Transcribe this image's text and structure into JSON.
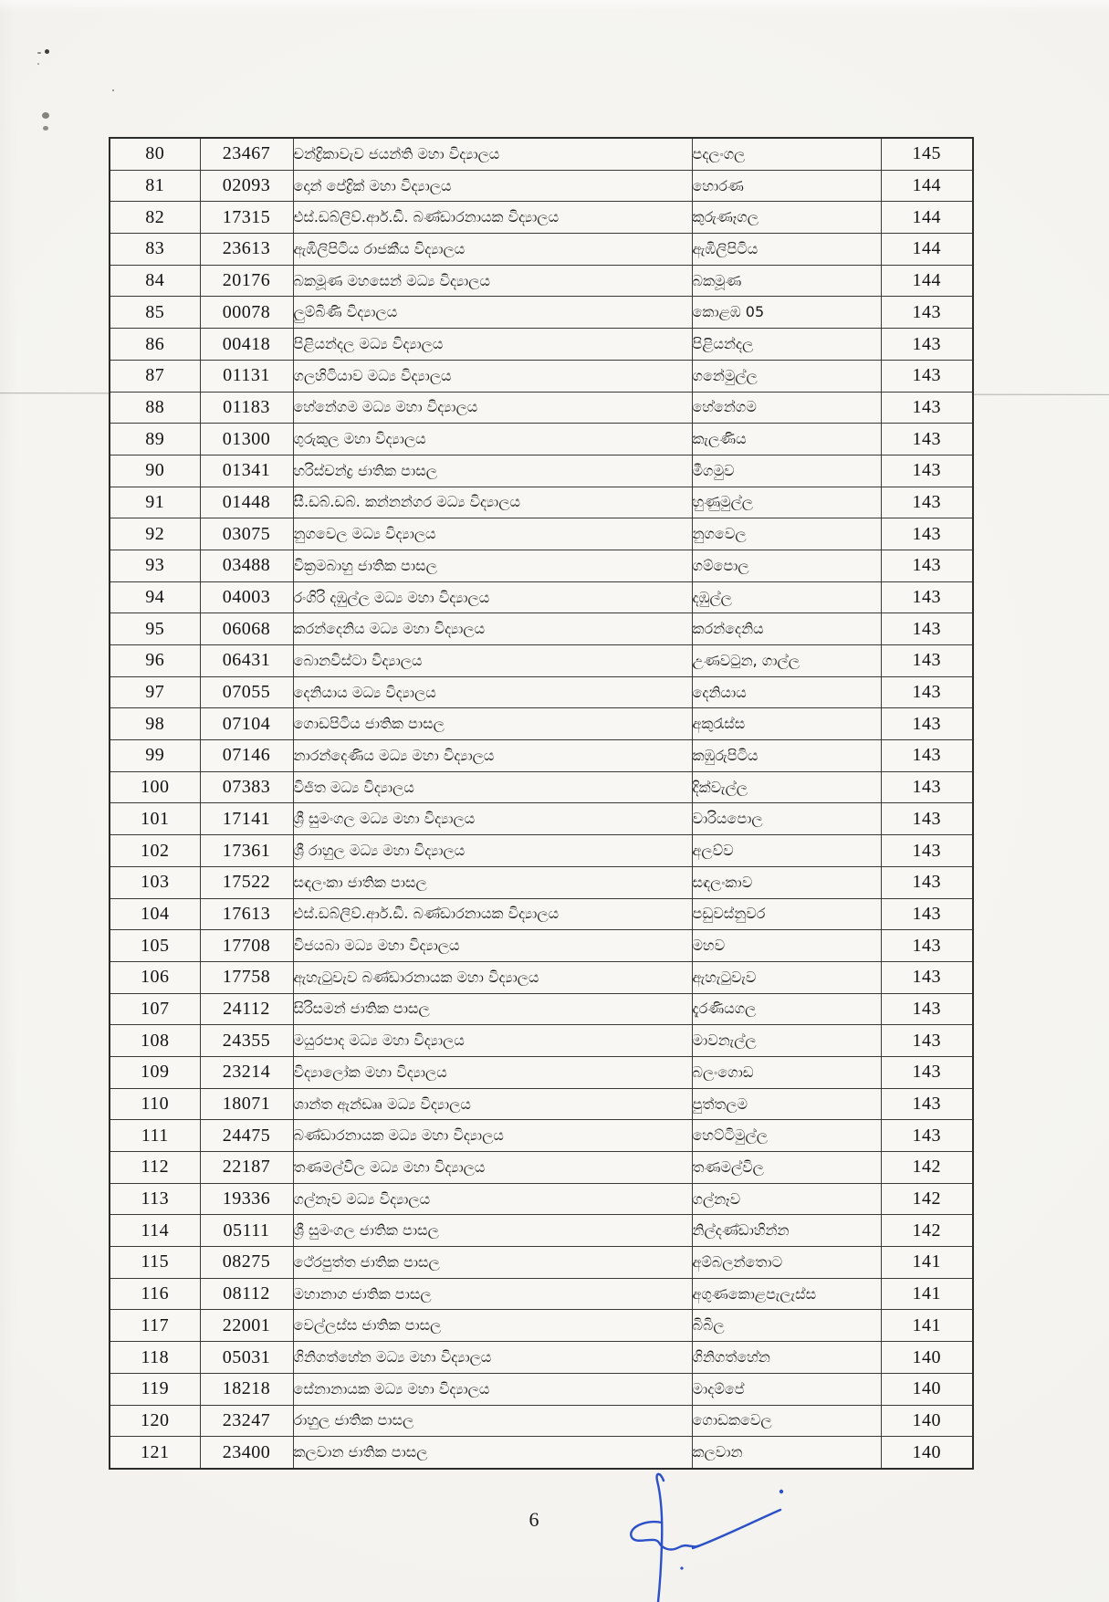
{
  "page": {
    "number_label": "6"
  },
  "scan": {
    "paper_color": "#f6f5f1",
    "border_color": "#3a3a38",
    "ink_color": "#2b50c8",
    "artifacts": [
      "pencil-specks-top-left",
      "horizontal-scan-line",
      "blue-pen-signature"
    ]
  },
  "table": {
    "columns": [
      {
        "key": "no",
        "role": "row-number",
        "align": "center"
      },
      {
        "key": "code",
        "role": "school-code",
        "align": "center"
      },
      {
        "key": "school",
        "role": "school-name",
        "align": "left"
      },
      {
        "key": "town",
        "role": "town-name",
        "align": "left"
      },
      {
        "key": "count",
        "role": "count-value",
        "align": "center"
      }
    ],
    "rows": [
      {
        "no": "80",
        "code": "23467",
        "school": "චන්ද්‍රිකාවැව ජයන්ති මහා විද්‍යාලය",
        "town": "පදලංගල",
        "count": "145"
      },
      {
        "no": "81",
        "code": "02093",
        "school": "දොන් පේද්‍රික් මහා විද්‍යාලය",
        "town": "හොරණ",
        "count": "144"
      },
      {
        "no": "82",
        "code": "17315",
        "school": "එස්.ඩබ්ලිව්.ආර්.ඩී. බණ්ඩාරනායක විද්‍යාලය",
        "town": "කුරුණෑගල",
        "count": "144"
      },
      {
        "no": "83",
        "code": "23613",
        "school": "ඇඹිලිපිටිය රාජකීය විද්‍යාලය",
        "town": "ඇඹිලිපිටිය",
        "count": "144"
      },
      {
        "no": "84",
        "code": "20176",
        "school": "බකමූණ මහසෙන් මධ්‍ය විද්‍යාලය",
        "town": "බකමූණ",
        "count": "144"
      },
      {
        "no": "85",
        "code": "00078",
        "school": "ලුම්බිණි විද්‍යාලය",
        "town": "කොළඹ 05",
        "count": "143"
      },
      {
        "no": "86",
        "code": "00418",
        "school": "පිළියන්දල මධ්‍ය විද්‍යාලය",
        "town": "පිළියන්දල",
        "count": "143"
      },
      {
        "no": "87",
        "code": "01131",
        "school": "ගලහිටියාව මධ්‍ය විද්‍යාලය",
        "town": "ගනේමුල්ල",
        "count": "143"
      },
      {
        "no": "88",
        "code": "01183",
        "school": "හේනේගම මධ්‍ය මහා විද්‍යාලය",
        "town": "හේනේගම",
        "count": "143"
      },
      {
        "no": "89",
        "code": "01300",
        "school": "ගුරුකුල මහා විද්‍යාලය",
        "town": "කැලණිය",
        "count": "143"
      },
      {
        "no": "90",
        "code": "01341",
        "school": "හරිස්චන්ද්‍ර ජාතික පාසල",
        "town": "මීගමුව",
        "count": "143"
      },
      {
        "no": "91",
        "code": "01448",
        "school": "සී.ඩබ්.ඩබ්. කන්නන්ගර මධ්‍ය විද්‍යාලය",
        "town": "හුණුමුල්ල",
        "count": "143"
      },
      {
        "no": "92",
        "code": "03075",
        "school": "නුගවෙල මධ්‍ය විද්‍යාලය",
        "town": "නුගවෙල",
        "count": "143"
      },
      {
        "no": "93",
        "code": "03488",
        "school": "වික්‍රමබාහු ජාතික පාසල",
        "town": "ගම්පොල",
        "count": "143"
      },
      {
        "no": "94",
        "code": "04003",
        "school": "රංගිරි දඹුල්ල මධ්‍ය මහා විද්‍යාලය",
        "town": "දඹුල්ල",
        "count": "143"
      },
      {
        "no": "95",
        "code": "06068",
        "school": "කරන්දෙනිය මධ්‍ය මහා විද්‍යාලය",
        "town": "කරන්දෙනිය",
        "count": "143"
      },
      {
        "no": "96",
        "code": "06431",
        "school": "බොනවිස්ටා විද්‍යාලය",
        "town": "උණවටුන, ගාල්ල",
        "count": "143"
      },
      {
        "no": "97",
        "code": "07055",
        "school": "දෙනියාය මධ්‍ය විද්‍යාලය",
        "town": "දෙනියාය",
        "count": "143"
      },
      {
        "no": "98",
        "code": "07104",
        "school": "ගොඩපිටිය ජාතික පාසල",
        "town": "අකුරැස්ස",
        "count": "143"
      },
      {
        "no": "99",
        "code": "07146",
        "school": "නාරන්දෙණිය මධ්‍ය මහා විද්‍යාලය",
        "town": "කඹුරුපිටිය",
        "count": "143"
      },
      {
        "no": "100",
        "code": "07383",
        "school": "විජිත මධ්‍ය විද්‍යාලය",
        "town": "දික්වැල්ල",
        "count": "143"
      },
      {
        "no": "101",
        "code": "17141",
        "school": "ශ්‍රී සුමංගල මධ්‍ය මහා විද්‍යාලය",
        "town": "වාරියපොල",
        "count": "143"
      },
      {
        "no": "102",
        "code": "17361",
        "school": "ශ්‍රී රාහුල මධ්‍ය මහා විද්‍යාලය",
        "town": "අලව්ව",
        "count": "143"
      },
      {
        "no": "103",
        "code": "17522",
        "school": "සඳලංකා ජාතික පාසල",
        "town": "සඳලංකාව",
        "count": "143"
      },
      {
        "no": "104",
        "code": "17613",
        "school": "එස්.ඩබ්ලිව්.ආර්.ඩී. බණ්ඩාරනායක විද්‍යාලය",
        "town": "පඩුවස්නුවර",
        "count": "143"
      },
      {
        "no": "105",
        "code": "17708",
        "school": "විජයබා මධ්‍ය මහා විද්‍යාලය",
        "town": "මහව",
        "count": "143"
      },
      {
        "no": "106",
        "code": "17758",
        "school": "ඇහැටුවැව බණ්ඩාරනායක මහා විද්‍යාලය",
        "town": "ඇහැටුවැව",
        "count": "143"
      },
      {
        "no": "107",
        "code": "24112",
        "school": "සිරිසමන් ජාතික පාසල",
        "town": "දැරණියගල",
        "count": "143"
      },
      {
        "no": "108",
        "code": "24355",
        "school": "මයුරපාද මධ්‍ය මහා විද්‍යාලය",
        "town": "මාවනැල්ල",
        "count": "143"
      },
      {
        "no": "109",
        "code": "23214",
        "school": "විද්‍යාලෝක මහා විද්‍යාලය",
        "town": "බලංගොඩ",
        "count": "143"
      },
      {
        "no": "110",
        "code": "18071",
        "school": "ශාන්ත ඇන්ඩෲ මධ්‍ය විද්‍යාලය",
        "town": "පුත්තලම",
        "count": "143"
      },
      {
        "no": "111",
        "code": "24475",
        "school": "බණ්ඩාරනායක මධ්‍ය මහා විද්‍යාලය",
        "town": "හෙට්ටිමුල්ල",
        "count": "143"
      },
      {
        "no": "112",
        "code": "22187",
        "school": "තණමල්විල මධ්‍ය මහා විද්‍යාලය",
        "town": "තණමල්විල",
        "count": "142"
      },
      {
        "no": "113",
        "code": "19336",
        "school": "ගල්නෑව මධ්‍ය විද්‍යාලය",
        "town": "ගල්නෑව",
        "count": "142"
      },
      {
        "no": "114",
        "code": "05111",
        "school": "ශ්‍රී සුමංගල ජාතික පාසල",
        "town": "නිල්දණ්ඩාහින්න",
        "count": "142"
      },
      {
        "no": "115",
        "code": "08275",
        "school": "ථේරපුත්ත ජාතික පාසල",
        "town": "අම්බලන්තොට",
        "count": "141"
      },
      {
        "no": "116",
        "code": "08112",
        "school": "මහානාග ජාතික පාසල",
        "town": "අගුණකොළපැලැස්ස",
        "count": "141"
      },
      {
        "no": "117",
        "code": "22001",
        "school": "වෙල්ලස්ස ජාතික පාසල",
        "town": "බිබිල",
        "count": "141"
      },
      {
        "no": "118",
        "code": "05031",
        "school": "ගිනිගත්හේන මධ්‍ය මහා විද්‍යාලය",
        "town": "ගිනිගත්හේන",
        "count": "140"
      },
      {
        "no": "119",
        "code": "18218",
        "school": "සේනානායක මධ්‍ය මහා විද්‍යාලය",
        "town": "මාදම්පේ",
        "count": "140"
      },
      {
        "no": "120",
        "code": "23247",
        "school": "රාහුල ජාතික පාසල",
        "town": "ගොඩකවෙල",
        "count": "140"
      },
      {
        "no": "121",
        "code": "23400",
        "school": "කලවාන ජාතික පාසල",
        "town": "කලවාන",
        "count": "140"
      }
    ]
  }
}
